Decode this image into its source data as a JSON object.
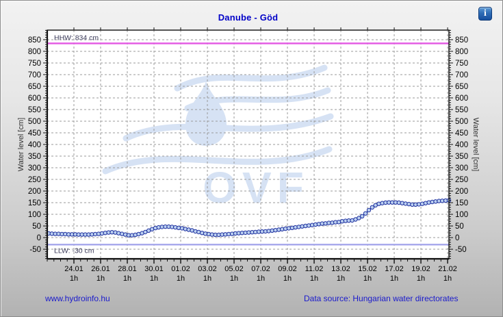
{
  "icons": {
    "info": "i"
  },
  "footer": {
    "site_link": "www.hydroinfo.hu",
    "data_source": "Data source: Hungarian water directorates"
  },
  "watermark": {
    "text": "OVF"
  },
  "chart_data": {
    "type": "line",
    "title": "Danube - Göd",
    "ylabel": "Water level [cm]",
    "ylim": [
      -91,
      891
    ],
    "y_tick_values": [
      -50,
      0,
      50,
      100,
      150,
      200,
      250,
      300,
      350,
      400,
      450,
      500,
      550,
      600,
      650,
      700,
      750,
      800,
      850
    ],
    "y_minor_step": 10,
    "x_span_days": 30.1,
    "x_minor_step_days": 0.5,
    "x_sub_label": "1h",
    "x_ticks": [
      {
        "day": 2,
        "label": "24.01"
      },
      {
        "day": 4,
        "label": "26.01"
      },
      {
        "day": 6,
        "label": "28.01"
      },
      {
        "day": 8,
        "label": "30.01"
      },
      {
        "day": 10,
        "label": "01.02"
      },
      {
        "day": 12,
        "label": "03.02"
      },
      {
        "day": 14,
        "label": "05.02"
      },
      {
        "day": 16,
        "label": "07.02"
      },
      {
        "day": 18,
        "label": "09.02"
      },
      {
        "day": 20,
        "label": "11.02"
      },
      {
        "day": 22,
        "label": "13.02"
      },
      {
        "day": 24,
        "label": "15.02"
      },
      {
        "day": 26,
        "label": "17.02"
      },
      {
        "day": 28,
        "label": "19.02"
      },
      {
        "day": 30,
        "label": "21.02"
      }
    ],
    "grid": true,
    "legend": "none",
    "reference_lines": [
      {
        "name": "HHW",
        "label": "HHW: 834 cm",
        "value": 834,
        "color": "#e45ce4",
        "label_side": "above"
      },
      {
        "name": "LLW",
        "label": "LLW: -30 cm",
        "value": -30,
        "color": "#a9aaec",
        "label_side": "below"
      }
    ],
    "series": [
      {
        "name": "water-level",
        "start_day": 0.1,
        "step_days": 0.25,
        "values": [
          18,
          17,
          16,
          16,
          15,
          15,
          14,
          14,
          14,
          13,
          13,
          13,
          13,
          14,
          15,
          16,
          18,
          20,
          22,
          23,
          22,
          19,
          16,
          13,
          10,
          10,
          12,
          15,
          19,
          24,
          30,
          36,
          41,
          44,
          46,
          47,
          47,
          46,
          44,
          42,
          40,
          37,
          34,
          31,
          27,
          24,
          20,
          17,
          15,
          13,
          12,
          12,
          13,
          14,
          15,
          16,
          18,
          19,
          20,
          21,
          22,
          23,
          24,
          25,
          26,
          27,
          28,
          30,
          32,
          34,
          36,
          38,
          40,
          42,
          44,
          46,
          48,
          50,
          52,
          54,
          56,
          58,
          60,
          61,
          63,
          64,
          66,
          67,
          70,
          72,
          73,
          74,
          78,
          84,
          92,
          104,
          118,
          130,
          139,
          145,
          148,
          150,
          151,
          151,
          151,
          150,
          148,
          146,
          144,
          142,
          142,
          143,
          145,
          148,
          151,
          153,
          155,
          157,
          158,
          159,
          160
        ]
      }
    ],
    "colors": {
      "marker_fill": "#bcd0f0",
      "marker_stroke": "#1c2f9e",
      "line": "#1c2f9e",
      "grid": "#9a9a9a",
      "plot_border": "#111111",
      "tick": "#111111",
      "watermark": "#d6e2f4",
      "plot_background": "#ffffff"
    }
  }
}
